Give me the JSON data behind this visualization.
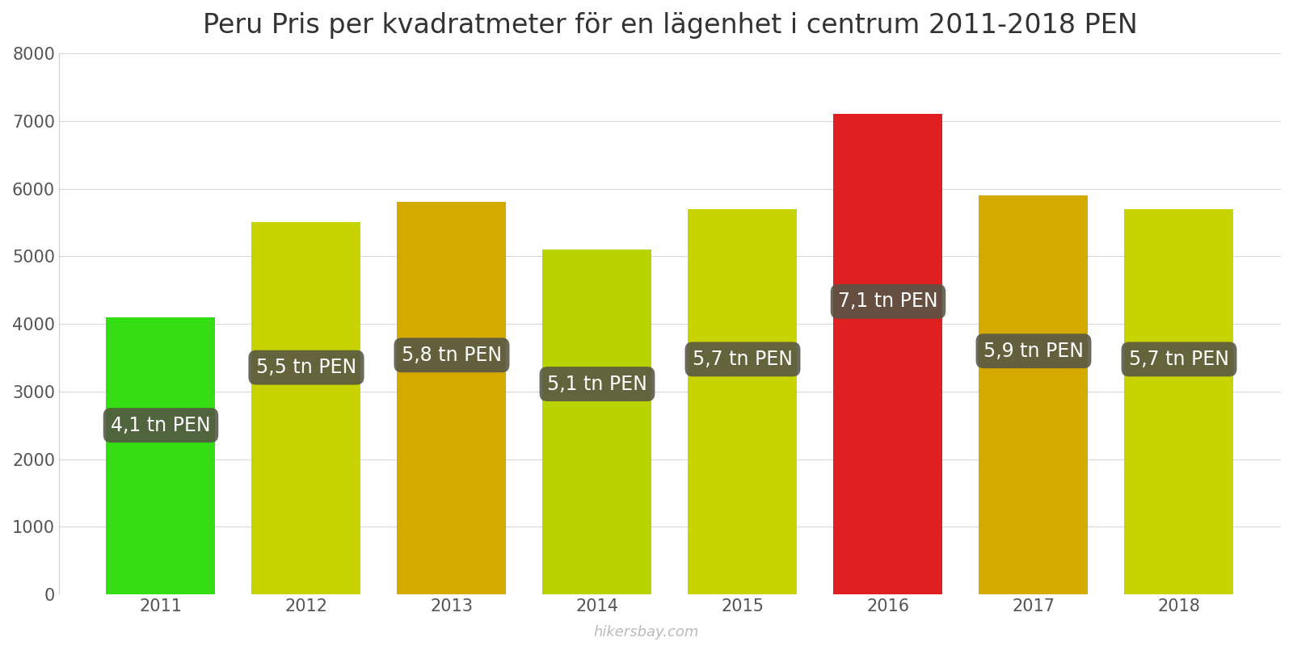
{
  "years": [
    2011,
    2012,
    2013,
    2014,
    2015,
    2016,
    2017,
    2018
  ],
  "values": [
    4100,
    5500,
    5800,
    5100,
    5700,
    7100,
    5900,
    5700
  ],
  "bar_colors": [
    "#33dd11",
    "#c8d400",
    "#d4aa00",
    "#b8d400",
    "#c8d400",
    "#e02020",
    "#d4aa00",
    "#c8d400"
  ],
  "labels": [
    "4,1 tn PEN",
    "5,5 tn PEN",
    "5,8 tn PEN",
    "5,1 tn PEN",
    "5,7 tn PEN",
    "7,1 tn PEN",
    "5,9 tn PEN",
    "5,7 tn PEN"
  ],
  "title": "Peru Pris per kvadratmeter för en lägenhet i centrum 2011-2018 PEN",
  "ylim": [
    0,
    8000
  ],
  "yticks": [
    0,
    1000,
    2000,
    3000,
    4000,
    5000,
    6000,
    7000,
    8000
  ],
  "watermark": "hikersbay.com",
  "label_box_color": "#555545",
  "label_text_color": "#ffffff",
  "label_fontsize": 17,
  "title_fontsize": 24,
  "background_color": "#ffffff",
  "grid_color": "#d8d8d8",
  "bar_width": 0.75,
  "xlim_left": 2010.3,
  "xlim_right": 2018.7
}
